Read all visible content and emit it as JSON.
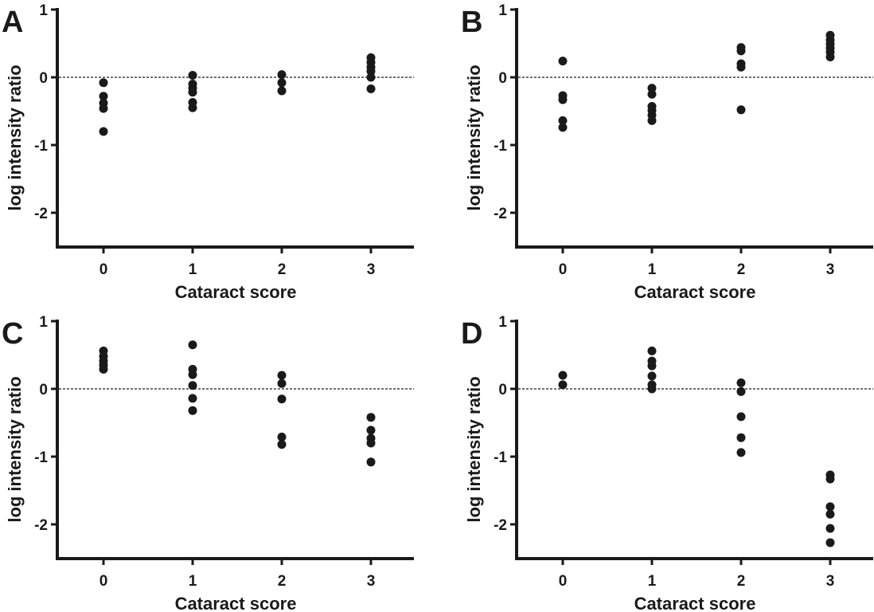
{
  "chart_data": [
    {
      "type": "scatter",
      "panel": "A",
      "xlabel": "Cataract score",
      "ylabel": "log intensity ratio",
      "x_ticks": [
        "0",
        "1",
        "2",
        "3"
      ],
      "y_ticks": [
        "1",
        "0",
        "-1",
        "-2"
      ],
      "ylim": [
        -2.5,
        1
      ],
      "reference_line": 0,
      "groups": [
        {
          "x": 0,
          "values": [
            -0.08,
            -0.28,
            -0.38,
            -0.46,
            -0.8
          ]
        },
        {
          "x": 1,
          "values": [
            0.03,
            -0.1,
            -0.16,
            -0.22,
            -0.37,
            -0.45
          ]
        },
        {
          "x": 2,
          "values": [
            0.04,
            -0.08,
            -0.2
          ]
        },
        {
          "x": 3,
          "values": [
            0.29,
            0.22,
            0.15,
            0.09,
            0.0,
            -0.17
          ]
        }
      ]
    },
    {
      "type": "scatter",
      "panel": "B",
      "xlabel": "Cataract score",
      "ylabel": "log intensity ratio",
      "x_ticks": [
        "0",
        "1",
        "2",
        "3"
      ],
      "y_ticks": [
        "1",
        "0",
        "-1",
        "-2"
      ],
      "ylim": [
        -2.5,
        1
      ],
      "reference_line": 0,
      "groups": [
        {
          "x": 0,
          "values": [
            0.24,
            -0.27,
            -0.33,
            -0.64,
            -0.74
          ]
        },
        {
          "x": 1,
          "values": [
            -0.16,
            -0.25,
            -0.43,
            -0.49,
            -0.56,
            -0.64
          ]
        },
        {
          "x": 2,
          "values": [
            0.44,
            0.39,
            0.2,
            0.15,
            -0.48
          ]
        },
        {
          "x": 3,
          "values": [
            0.62,
            0.55,
            0.49,
            0.43,
            0.37,
            0.3
          ]
        }
      ]
    },
    {
      "type": "scatter",
      "panel": "C",
      "xlabel": "Cataract score",
      "ylabel": "log intensity ratio",
      "x_ticks": [
        "0",
        "1",
        "2",
        "3"
      ],
      "y_ticks": [
        "1",
        "0",
        "-1",
        "-2"
      ],
      "ylim": [
        -2.5,
        1
      ],
      "reference_line": 0,
      "groups": [
        {
          "x": 0,
          "values": [
            0.56,
            0.48,
            0.41,
            0.35,
            0.29
          ]
        },
        {
          "x": 1,
          "values": [
            0.65,
            0.29,
            0.21,
            0.05,
            -0.14,
            -0.32
          ]
        },
        {
          "x": 2,
          "values": [
            0.2,
            0.08,
            -0.15,
            -0.71,
            -0.82
          ]
        },
        {
          "x": 3,
          "values": [
            -0.42,
            -0.61,
            -0.73,
            -0.8,
            -1.08
          ]
        }
      ]
    },
    {
      "type": "scatter",
      "panel": "D",
      "xlabel": "Cataract score",
      "ylabel": "log intensity ratio",
      "x_ticks": [
        "0",
        "1",
        "2",
        "3"
      ],
      "y_ticks": [
        "1",
        "0",
        "-1",
        "-2"
      ],
      "ylim": [
        -2.5,
        1
      ],
      "reference_line": 0,
      "groups": [
        {
          "x": 0,
          "values": [
            0.2,
            0.06
          ]
        },
        {
          "x": 1,
          "values": [
            0.56,
            0.41,
            0.34,
            0.19,
            0.06,
            0.0
          ]
        },
        {
          "x": 2,
          "values": [
            0.09,
            -0.04,
            -0.41,
            -0.72,
            -0.94
          ]
        },
        {
          "x": 3,
          "values": [
            -1.27,
            -1.33,
            -1.74,
            -1.85,
            -2.06,
            -2.27
          ]
        }
      ]
    }
  ],
  "colors": {
    "ink": "#1a1a1a",
    "background": "#ffffff"
  }
}
